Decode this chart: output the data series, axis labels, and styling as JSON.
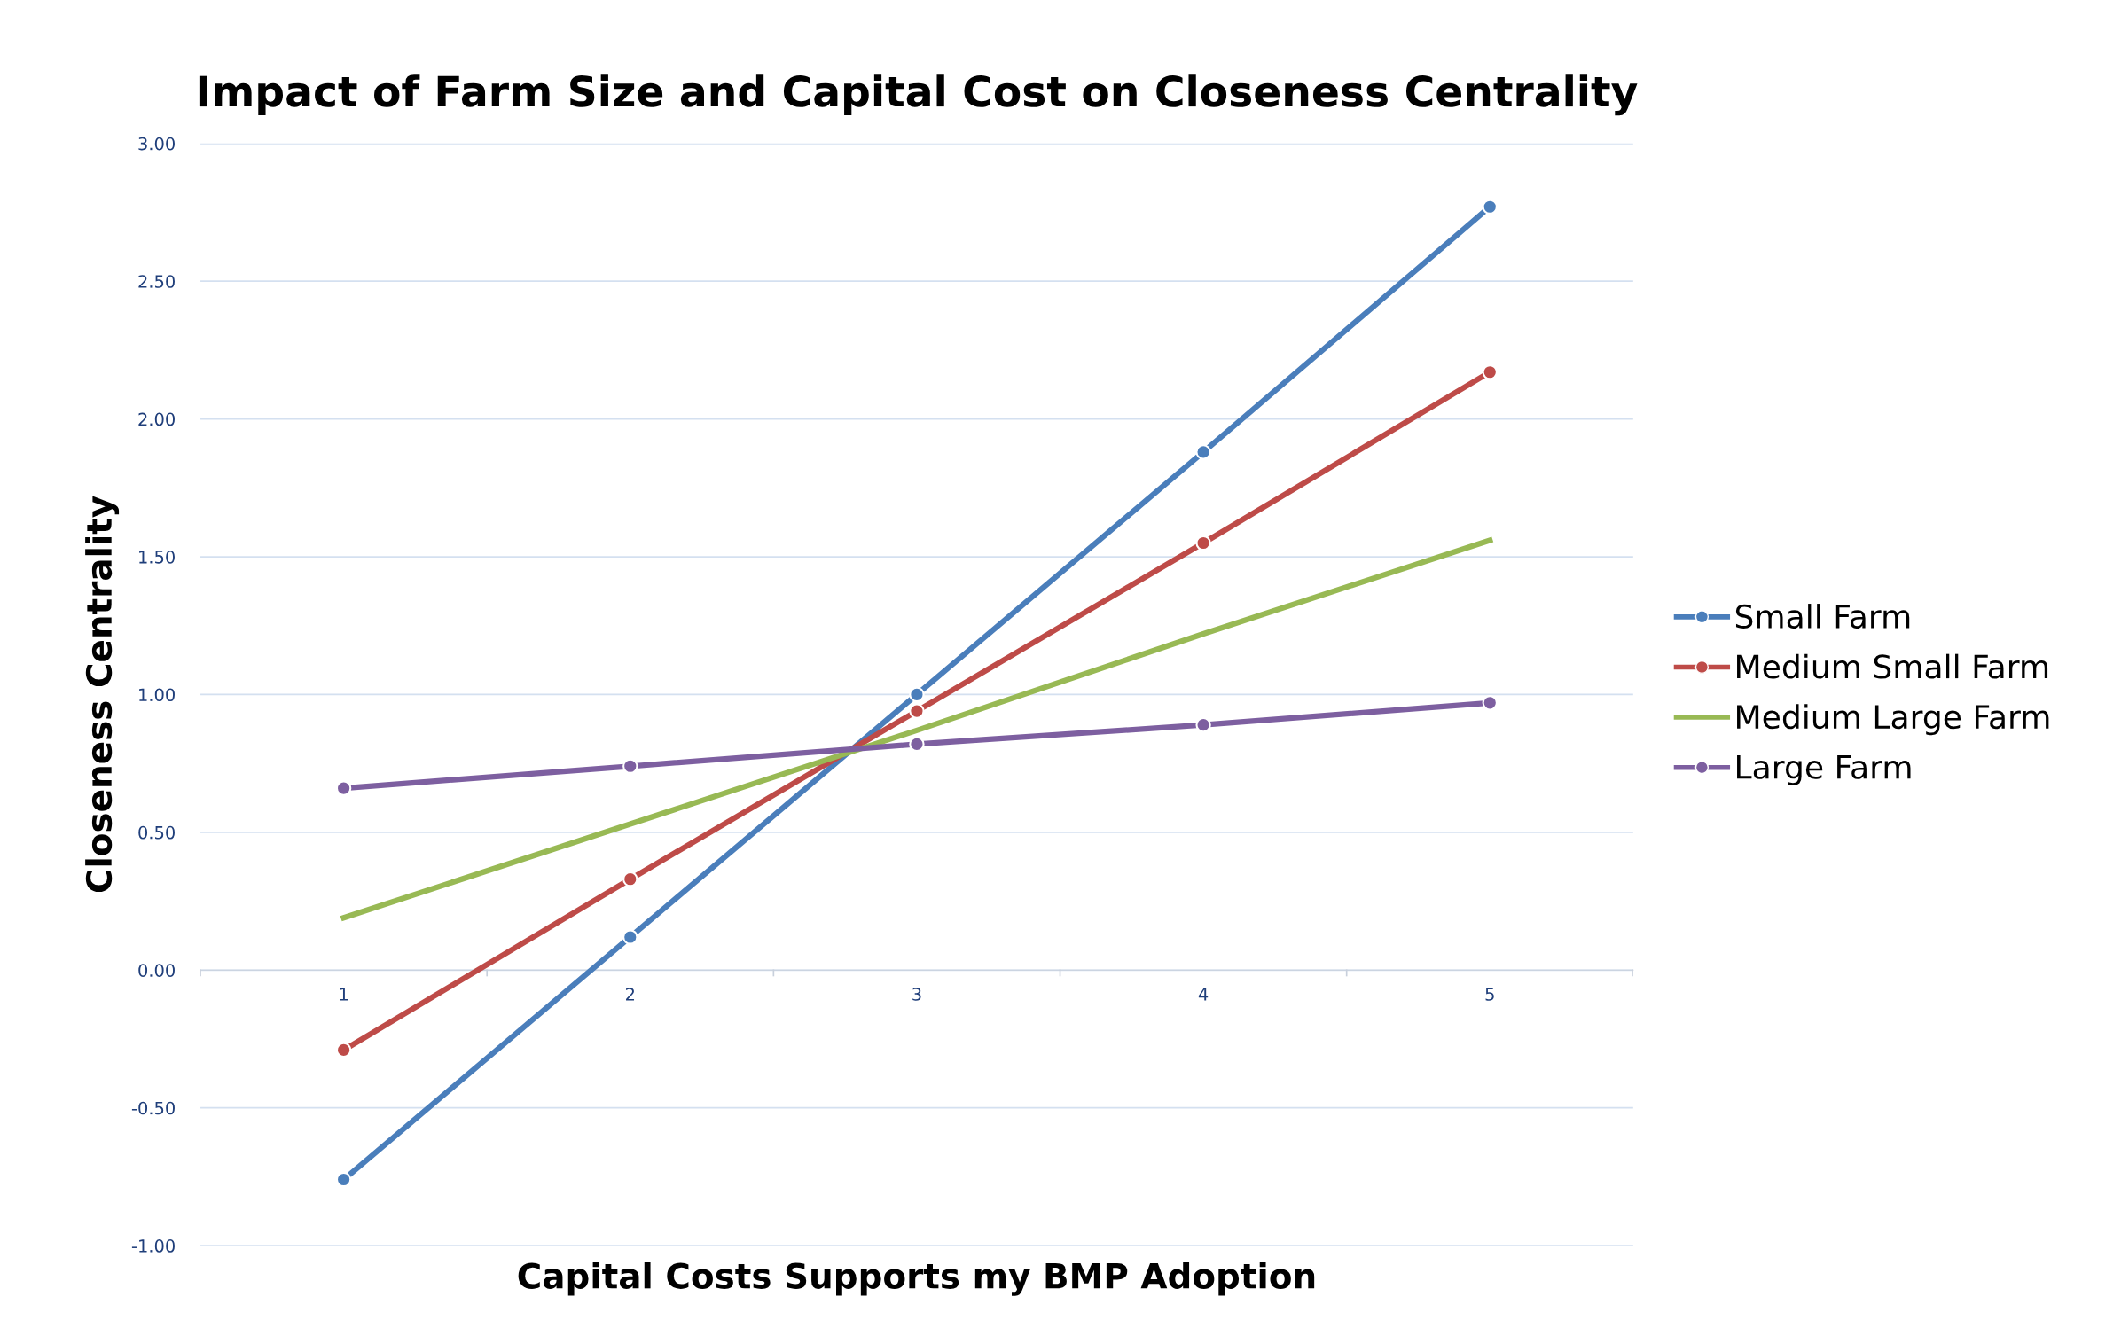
{
  "chart_data": {
    "type": "line",
    "title": "Impact of Farm Size and Capital Cost on Closeness Centrality",
    "xlabel": "Capital Costs Supports my BMP Adoption",
    "ylabel": "Closeness Centrality",
    "categories": [
      "1",
      "2",
      "3",
      "4",
      "5"
    ],
    "series": [
      {
        "name": "Small Farm",
        "color": "#4a7ebb",
        "marker": "circle",
        "values": [
          -0.76,
          0.12,
          1.0,
          1.88,
          2.77
        ]
      },
      {
        "name": "Medium Small Farm",
        "color": "#be4b48",
        "marker": "circle",
        "values": [
          -0.29,
          0.33,
          0.94,
          1.55,
          2.17
        ]
      },
      {
        "name": "Medium Large Farm",
        "color": "#98b954",
        "marker": "none",
        "values": [
          0.19,
          0.53,
          0.87,
          1.22,
          1.56
        ]
      },
      {
        "name": "Large Farm",
        "color": "#7d5fa0",
        "marker": "circle",
        "values": [
          0.66,
          0.74,
          0.82,
          0.89,
          0.97
        ]
      }
    ],
    "ylim": [
      -1,
      3
    ],
    "yticks": [
      {
        "value": -1,
        "label": "-1.00"
      },
      {
        "value": -0.5,
        "label": "-0.50"
      },
      {
        "value": 0,
        "label": "0.00"
      },
      {
        "value": 0.5,
        "label": "0.50"
      },
      {
        "value": 1,
        "label": "1.00"
      },
      {
        "value": 1.5,
        "label": "1.50"
      },
      {
        "value": 2,
        "label": "2.00"
      },
      {
        "value": 2.5,
        "label": "2.50"
      },
      {
        "value": 3,
        "label": "3.00"
      }
    ],
    "grid": "y",
    "legend": "right",
    "line_style": "solid"
  }
}
